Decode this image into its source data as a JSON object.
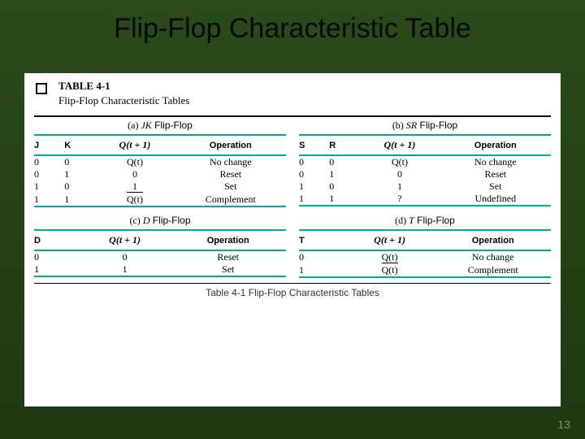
{
  "colors": {
    "bg_top": "#2a4a1a",
    "bg_bottom": "#1f3a12",
    "content_bg": "#ffffff",
    "rule_teal": "#00a99d",
    "rule_black": "#000000",
    "pagenum_color": "#7a9a6a"
  },
  "title": "Flip-Flop Characteristic Table",
  "table_number": "TABLE 4-1",
  "table_title_sub": "Flip-Flop Characteristic Tables",
  "caption": "Table 4-1   Flip-Flop Characteristic Tables",
  "page_number": "13",
  "headers": {
    "qnext": "Q(t + 1)",
    "operation": "Operation"
  },
  "sections": {
    "jk": {
      "label_prefix": "(a) ",
      "label_em": "JK",
      "label_suffix": " Flip-Flop",
      "cols": {
        "c1": "J",
        "c2": "K"
      },
      "rows": [
        {
          "c1": "0",
          "c2": "0",
          "q": "Q(t)",
          "qbar": false,
          "op": "No change"
        },
        {
          "c1": "0",
          "c2": "1",
          "q": "0",
          "qbar": false,
          "op": "Reset"
        },
        {
          "c1": "1",
          "c2": "0",
          "q": "1",
          "qbar": false,
          "op": "Set"
        },
        {
          "c1": "1",
          "c2": "1",
          "q": "Q(t)",
          "qbar": true,
          "op": "Complement"
        }
      ]
    },
    "sr": {
      "label_prefix": "(b) ",
      "label_em": "SR",
      "label_suffix": " Flip-Flop",
      "cols": {
        "c1": "S",
        "c2": "R"
      },
      "rows": [
        {
          "c1": "0",
          "c2": "0",
          "q": "Q(t)",
          "qbar": false,
          "op": "No change"
        },
        {
          "c1": "0",
          "c2": "1",
          "q": "0",
          "qbar": false,
          "op": "Reset"
        },
        {
          "c1": "1",
          "c2": "0",
          "q": "1",
          "qbar": false,
          "op": "Set"
        },
        {
          "c1": "1",
          "c2": "1",
          "q": "?",
          "qbar": false,
          "op": "Undefined"
        }
      ]
    },
    "d": {
      "label_prefix": "(c) ",
      "label_em": "D",
      "label_suffix": " Flip-Flop",
      "cols": {
        "c1": "D"
      },
      "rows": [
        {
          "c1": "0",
          "q": "0",
          "qbar": false,
          "op": "Reset"
        },
        {
          "c1": "1",
          "q": "1",
          "qbar": false,
          "op": "Set"
        }
      ]
    },
    "t": {
      "label_prefix": "(d) ",
      "label_em": "T",
      "label_suffix": " Flip-Flop",
      "cols": {
        "c1": "T"
      },
      "rows": [
        {
          "c1": "0",
          "q": "Q(t)",
          "qbar": false,
          "op": "No change"
        },
        {
          "c1": "1",
          "q": "Q(t)",
          "qbar": true,
          "op": "Complement"
        }
      ]
    }
  }
}
